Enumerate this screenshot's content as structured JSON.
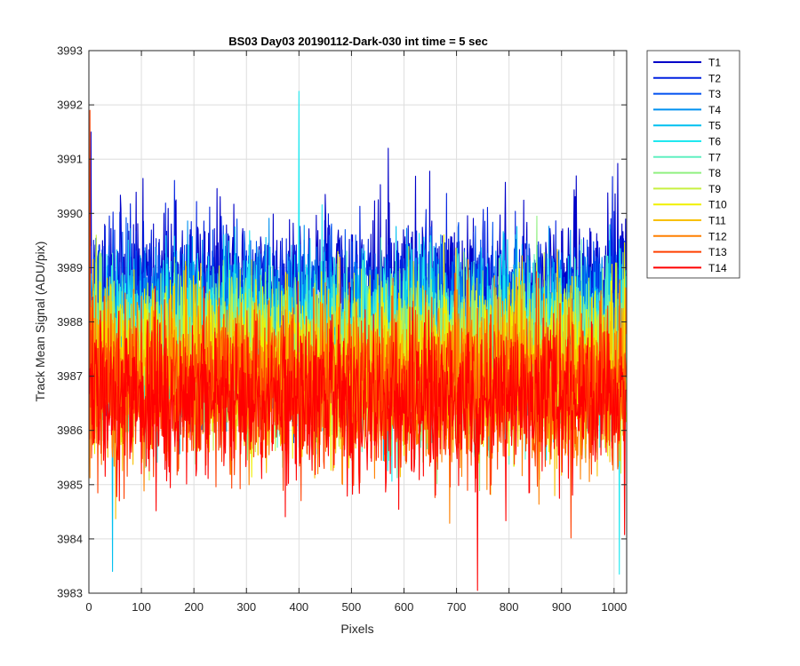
{
  "chart_data": {
    "type": "line",
    "title": "BS03 Day03 20190112-Dark-030 int time = 5 sec",
    "xlabel": "Pixels",
    "ylabel": "Track Mean Signal (ADU/pix)",
    "xlim": [
      0,
      1024
    ],
    "ylim": [
      3983,
      3993
    ],
    "xticks": [
      0,
      100,
      200,
      300,
      400,
      500,
      600,
      700,
      800,
      900,
      1000
    ],
    "yticks": [
      3983,
      3984,
      3985,
      3986,
      3987,
      3988,
      3989,
      3990,
      3991,
      3992,
      3993
    ],
    "grid": true,
    "legend_position": "outside-top-right",
    "n_points": 1024,
    "series": [
      {
        "name": "T1",
        "color": "#0000c8",
        "mean": 3988.6,
        "spread": 0.75,
        "seed": 11
      },
      {
        "name": "T2",
        "color": "#0020e0",
        "mean": 3988.3,
        "spread": 0.75,
        "seed": 23
      },
      {
        "name": "T3",
        "color": "#0050f0",
        "mean": 3988.1,
        "spread": 0.75,
        "seed": 37
      },
      {
        "name": "T4",
        "color": "#0090f0",
        "mean": 3987.9,
        "spread": 0.75,
        "seed": 41
      },
      {
        "name": "T5",
        "color": "#00c0f0",
        "mean": 3987.7,
        "spread": 0.75,
        "seed": 53
      },
      {
        "name": "T6",
        "color": "#20e8f0",
        "mean": 3987.6,
        "spread": 0.75,
        "seed": 67
      },
      {
        "name": "T7",
        "color": "#60f0c0",
        "mean": 3987.5,
        "spread": 0.75,
        "seed": 71
      },
      {
        "name": "T8",
        "color": "#90f080",
        "mean": 3987.4,
        "spread": 0.75,
        "seed": 83
      },
      {
        "name": "T9",
        "color": "#c8f040",
        "mean": 3987.3,
        "spread": 0.75,
        "seed": 97
      },
      {
        "name": "T10",
        "color": "#f0f000",
        "mean": 3987.2,
        "spread": 0.75,
        "seed": 101
      },
      {
        "name": "T11",
        "color": "#f8c000",
        "mean": 3987.0,
        "spread": 0.75,
        "seed": 113
      },
      {
        "name": "T12",
        "color": "#ff8000",
        "mean": 3986.9,
        "spread": 0.75,
        "seed": 127
      },
      {
        "name": "T13",
        "color": "#ff4000",
        "mean": 3986.7,
        "spread": 0.75,
        "seed": 131
      },
      {
        "name": "T14",
        "color": "#ff0000",
        "mean": 3986.5,
        "spread": 0.75,
        "seed": 149
      }
    ],
    "annotations": [
      {
        "series": "T6",
        "x": 400,
        "y": 3992.25
      },
      {
        "series": "T13",
        "x": 2,
        "y": 3991.9
      },
      {
        "series": "T1",
        "x": 4,
        "y": 3991.5
      },
      {
        "series": "T1",
        "x": 570,
        "y": 3991.2
      },
      {
        "series": "T14",
        "x": 740,
        "y": 3983.05
      },
      {
        "series": "T5",
        "x": 45,
        "y": 3983.4
      },
      {
        "series": "T6",
        "x": 1010,
        "y": 3983.35
      }
    ]
  }
}
